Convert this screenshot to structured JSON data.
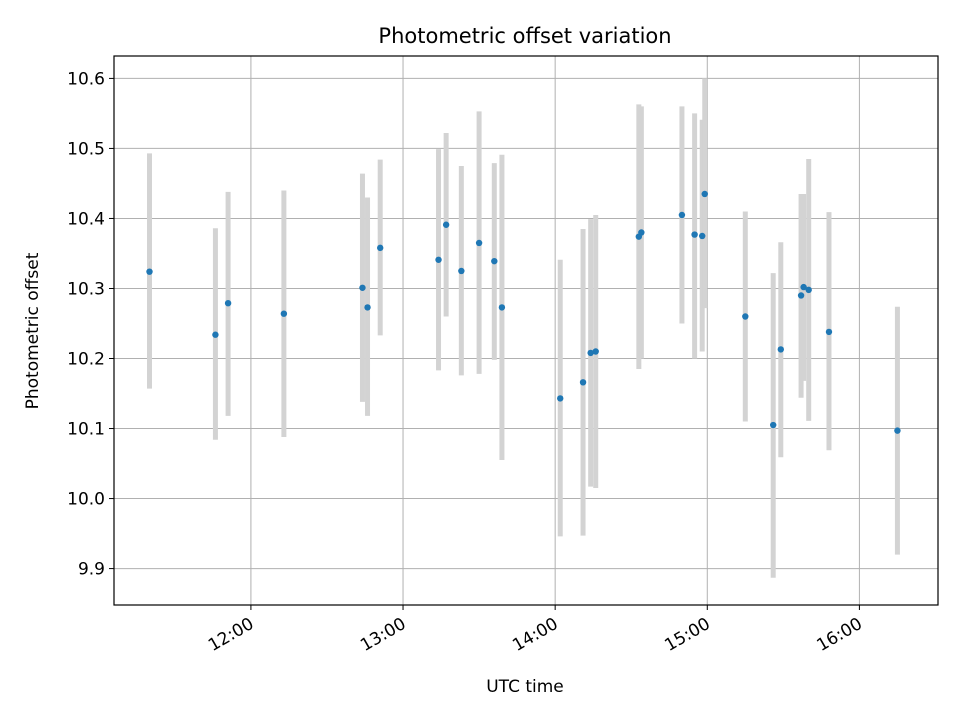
{
  "chart_data": {
    "type": "scatter",
    "title": "Photometric offset variation",
    "xlabel": "UTC time",
    "ylabel": "Photometric offset",
    "xlim": [
      "11:06",
      "16:31"
    ],
    "ylim": [
      9.848,
      10.632
    ],
    "x_ticks": [
      "12:00",
      "13:00",
      "14:00",
      "15:00",
      "16:00"
    ],
    "y_ticks": [
      9.9,
      10.0,
      10.1,
      10.2,
      10.3,
      10.4,
      10.5,
      10.6
    ],
    "y_tick_labels": [
      "9.9",
      "10.0",
      "10.1",
      "10.2",
      "10.3",
      "10.4",
      "10.5",
      "10.6"
    ],
    "grid": true,
    "colors": {
      "point": "#1f77b4",
      "errorbar": "#d3d3d3",
      "grid": "#b0b0b0"
    },
    "points": [
      {
        "x": "11:20",
        "y": 10.324,
        "lo": 10.157,
        "hi": 10.493
      },
      {
        "x": "11:46",
        "y": 10.234,
        "lo": 10.084,
        "hi": 10.386
      },
      {
        "x": "11:51",
        "y": 10.279,
        "lo": 10.118,
        "hi": 10.438
      },
      {
        "x": "12:13",
        "y": 10.264,
        "lo": 10.088,
        "hi": 10.44
      },
      {
        "x": "12:44",
        "y": 10.301,
        "lo": 10.138,
        "hi": 10.464
      },
      {
        "x": "12:46",
        "y": 10.273,
        "lo": 10.118,
        "hi": 10.43
      },
      {
        "x": "12:51",
        "y": 10.358,
        "lo": 10.233,
        "hi": 10.484
      },
      {
        "x": "13:14",
        "y": 10.341,
        "lo": 10.183,
        "hi": 10.499
      },
      {
        "x": "13:17",
        "y": 10.391,
        "lo": 10.26,
        "hi": 10.522
      },
      {
        "x": "13:23",
        "y": 10.325,
        "lo": 10.176,
        "hi": 10.475
      },
      {
        "x": "13:30",
        "y": 10.365,
        "lo": 10.178,
        "hi": 10.553
      },
      {
        "x": "13:36",
        "y": 10.339,
        "lo": 10.198,
        "hi": 10.479
      },
      {
        "x": "13:39",
        "y": 10.273,
        "lo": 10.055,
        "hi": 10.491
      },
      {
        "x": "14:02",
        "y": 10.143,
        "lo": 9.946,
        "hi": 10.341
      },
      {
        "x": "14:11",
        "y": 10.166,
        "lo": 9.947,
        "hi": 10.385
      },
      {
        "x": "14:14",
        "y": 10.208,
        "lo": 10.017,
        "hi": 10.399
      },
      {
        "x": "14:16",
        "y": 10.21,
        "lo": 10.015,
        "hi": 10.405
      },
      {
        "x": "14:33",
        "y": 10.374,
        "lo": 10.185,
        "hi": 10.563
      },
      {
        "x": "14:34",
        "y": 10.38,
        "lo": 10.2,
        "hi": 10.56
      },
      {
        "x": "14:50",
        "y": 10.405,
        "lo": 10.25,
        "hi": 10.56
      },
      {
        "x": "14:55",
        "y": 10.377,
        "lo": 10.2,
        "hi": 10.55
      },
      {
        "x": "14:58",
        "y": 10.375,
        "lo": 10.21,
        "hi": 10.541
      },
      {
        "x": "14:59",
        "y": 10.435,
        "lo": 10.272,
        "hi": 10.6
      },
      {
        "x": "15:15",
        "y": 10.26,
        "lo": 10.11,
        "hi": 10.41
      },
      {
        "x": "15:26",
        "y": 10.105,
        "lo": 9.887,
        "hi": 10.322
      },
      {
        "x": "15:29",
        "y": 10.213,
        "lo": 10.059,
        "hi": 10.366
      },
      {
        "x": "15:37",
        "y": 10.29,
        "lo": 10.144,
        "hi": 10.435
      },
      {
        "x": "15:38",
        "y": 10.302,
        "lo": 10.168,
        "hi": 10.435
      },
      {
        "x": "15:40",
        "y": 10.298,
        "lo": 10.111,
        "hi": 10.485
      },
      {
        "x": "15:48",
        "y": 10.238,
        "lo": 10.069,
        "hi": 10.409
      },
      {
        "x": "16:15",
        "y": 10.097,
        "lo": 9.92,
        "hi": 10.274
      }
    ]
  }
}
